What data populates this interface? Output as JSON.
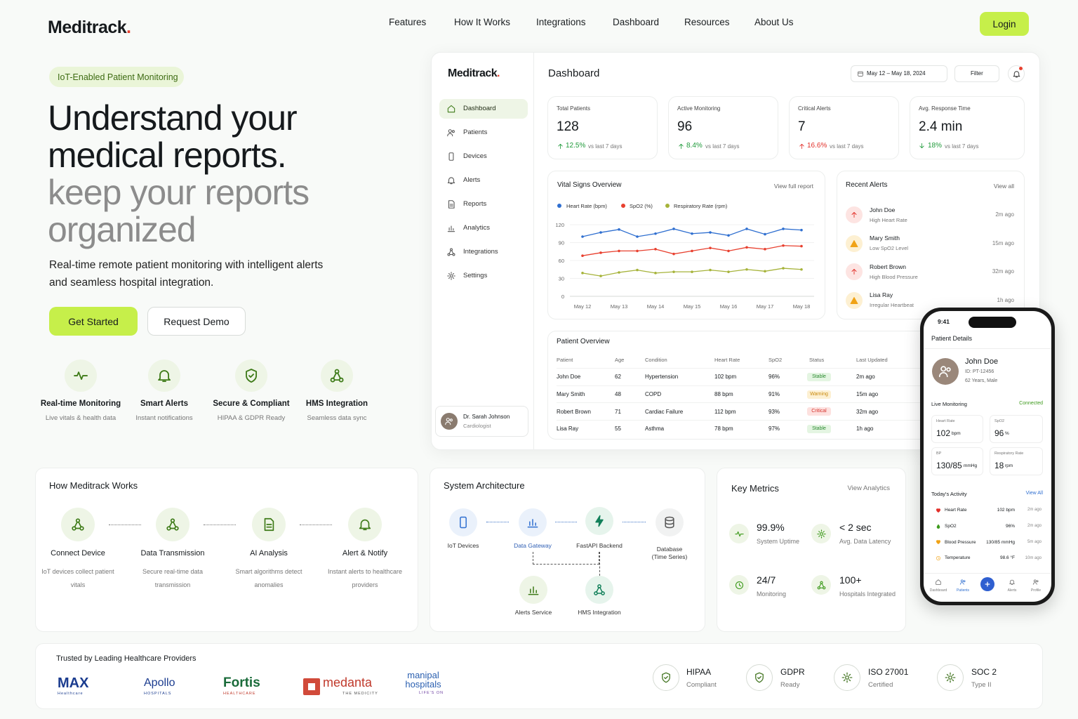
{
  "nav": {
    "brand_name": "Meditrack",
    "brand_mark": ".",
    "links": [
      "Features",
      "How It Works",
      "Integrations",
      "Dashboard",
      "Resources",
      "About Us"
    ],
    "login": "Login"
  },
  "hero": {
    "badge": "IoT-Enabled Patient Monitoring",
    "title_lines": [
      "Understand your",
      "medical reports."
    ],
    "subtitle_lines": [
      "keep your reports",
      "organized"
    ],
    "description_lines": [
      "Real-time remote patient monitoring with intelligent alerts",
      "and seamless hospital integration."
    ],
    "primary_button": "Get Started",
    "secondary_button": "Request Demo",
    "features": [
      {
        "title": "Real-time Monitoring",
        "text": "Live vitals & health data"
      },
      {
        "title": "Smart Alerts",
        "text": "Instant notifications"
      },
      {
        "title": "Secure & Compliant",
        "text": "HIPAA & GDPR Ready"
      },
      {
        "title": "HMS Integration",
        "text": "Seamless data sync"
      }
    ]
  },
  "dashboard": {
    "brand_name": "Meditrack",
    "brand_mark": ".",
    "title": "Dashboard",
    "date_range": "May 12 – May 18, 2024",
    "filter": "Filter",
    "menu": [
      "Dashboard",
      "Patients",
      "Devices",
      "Alerts",
      "Reports",
      "Analytics",
      "Integrations",
      "Settings"
    ],
    "user": {
      "name": "Dr. Sarah Johnson",
      "role": "Cardiologist"
    },
    "stats": [
      {
        "label": "Total Patients",
        "value": "128",
        "change": "12.5%",
        "period": "vs last 7 days"
      },
      {
        "label": "Active Monitoring",
        "value": "96",
        "change": "8.4%",
        "period": "vs last 7 days"
      },
      {
        "label": "Critical Alerts",
        "value": "7",
        "change": "16.6%",
        "period": "vs last 7 days"
      },
      {
        "label": "Avg. Response Time",
        "value": "2.4 min",
        "change": "18%",
        "period": "vs last 7 days"
      }
    ],
    "vitals_chart": {
      "type": "line",
      "title": "Vital Signs Overview",
      "link": "View full report",
      "categories": [
        "May 12",
        null,
        "May 13",
        null,
        "May 14",
        null,
        "May 15",
        null,
        "May 16",
        null,
        "May 17",
        null,
        "May 18"
      ],
      "series": [
        {
          "name": "Heart Rate (bpm)",
          "color": "#2f6fd0",
          "values": [
            100,
            107,
            112,
            100,
            105,
            113,
            105,
            107,
            102,
            113,
            104,
            113,
            111
          ]
        },
        {
          "name": "SpO2 (%)",
          "color": "#e8402f",
          "values": [
            68,
            73,
            76,
            76,
            79,
            71,
            76,
            81,
            76,
            82,
            79,
            85,
            84
          ]
        },
        {
          "name": "Respiratory Rate (rpm)",
          "color": "#a6b33a",
          "values": [
            39,
            34,
            40,
            44,
            39,
            41,
            41,
            44,
            41,
            45,
            42,
            47,
            45
          ]
        }
      ],
      "ylim": [
        0,
        120
      ],
      "yticks": [
        0,
        30,
        60,
        90,
        120
      ],
      "grid": true
    },
    "alerts": {
      "title": "Recent Alerts",
      "link": "View all",
      "items": [
        {
          "name": "John Doe",
          "issue": "High Heart Rate",
          "time": "2m ago"
        },
        {
          "name": "Mary Smith",
          "issue": "Low SpO2 Level",
          "time": "15m ago"
        },
        {
          "name": "Robert Brown",
          "issue": "High Blood Pressure",
          "time": "32m ago"
        },
        {
          "name": "Lisa Ray",
          "issue": "Irregular Heartbeat",
          "time": "1h ago"
        }
      ]
    },
    "patients": {
      "title": "Patient Overview",
      "columns": [
        "Patient",
        "Age",
        "Condition",
        "Heart Rate",
        "SpO2",
        "Status",
        "Last Updated"
      ],
      "rows": [
        [
          "John Doe",
          "62",
          "Hypertension",
          "102 bpm",
          "96%",
          "Stable",
          "2m ago"
        ],
        [
          "Mary Smith",
          "48",
          "COPD",
          "88 bpm",
          "91%",
          "Warning",
          "15m ago"
        ],
        [
          "Robert Brown",
          "71",
          "Cardiac Failure",
          "112 bpm",
          "93%",
          "Critical",
          "32m ago"
        ],
        [
          "Lisa Ray",
          "55",
          "Asthma",
          "78 bpm",
          "97%",
          "Stable",
          "1h ago"
        ]
      ]
    }
  },
  "mobile": {
    "time": "9:41",
    "title": "Patient Details",
    "patient": {
      "name": "John Doe",
      "id": "ID: PT-12456",
      "info": "62 Years, Male"
    },
    "monitoring": {
      "title": "Live Monitoring",
      "status": "Connected",
      "vitals": [
        {
          "label": "Heart Rate",
          "value": "102",
          "unit": "bpm"
        },
        {
          "label": "SpO2",
          "value": "96",
          "unit": "%"
        },
        {
          "label": "BP",
          "value": "130/85",
          "unit": "mmHg"
        },
        {
          "label": "Respiratory Rate",
          "value": "18",
          "unit": "rpm"
        }
      ]
    },
    "activity": {
      "title": "Today's Activity",
      "link": "View All",
      "items": [
        {
          "name": "Heart Rate",
          "value": "102 bpm",
          "time": "2m ago"
        },
        {
          "name": "SpO2",
          "value": "96%",
          "time": "2m ago"
        },
        {
          "name": "Blood Pressure",
          "value": "130/85 mmHg",
          "time": "5m ago"
        },
        {
          "name": "Temperature",
          "value": "98.6 °F",
          "time": "10m ago"
        }
      ]
    },
    "tabs": [
      "Dashboard",
      "Patients",
      "Alerts",
      "Profile"
    ]
  },
  "how_it_works": {
    "title": "How Meditrack Works",
    "steps": [
      {
        "title": "Connect Device",
        "text": "IoT devices collect patient vitals"
      },
      {
        "title": "Data Transmission",
        "text": "Secure real-time data transmission"
      },
      {
        "title": "AI Analysis",
        "text": "Smart algorithms detect anomalies"
      },
      {
        "title": "Alert & Notify",
        "text": "Instant alerts to healthcare providers"
      }
    ]
  },
  "architecture": {
    "title": "System Architecture",
    "nodes": [
      {
        "label": "IoT Devices"
      },
      {
        "label": "Data Gateway"
      },
      {
        "label": "FastAPI Backend"
      },
      {
        "label": "Database (Time Series)"
      },
      {
        "label": "Alerts Service"
      },
      {
        "label": "HMS Integration"
      }
    ]
  },
  "key_metrics": {
    "title": "Key Metrics",
    "link": "View Analytics",
    "items": [
      {
        "value": "99.9%",
        "label": "System Uptime"
      },
      {
        "value": "< 2 sec",
        "label": "Avg. Data Latency"
      },
      {
        "value": "24/7",
        "label": "Monitoring"
      },
      {
        "value": "100+",
        "label": "Hospitals Integrated"
      }
    ]
  },
  "trust": {
    "title": "Trusted by Leading Healthcare Providers",
    "logos": [
      {
        "name": "MAX",
        "tagline": "Healthcare"
      },
      {
        "name": "Apollo",
        "tagline": "HOSPITALS"
      },
      {
        "name": "Fortis",
        "tagline": "HEALTHCARE"
      },
      {
        "name": "medanta",
        "tagline": "THE MEDICITY"
      },
      {
        "name": "manipal hospitals",
        "tagline": "LIFE'S ON"
      }
    ],
    "certs": [
      {
        "name": "HIPAA",
        "text": "Compliant"
      },
      {
        "name": "GDPR",
        "text": "Ready"
      },
      {
        "name": "ISO 27001",
        "text": "Certified"
      },
      {
        "name": "SOC 2",
        "text": "Type II"
      }
    ]
  }
}
